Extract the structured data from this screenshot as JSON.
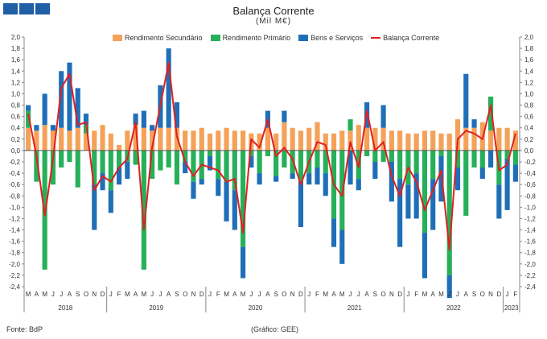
{
  "header": {
    "title": "Balança Corrente",
    "subtitle": "(Mil M€)"
  },
  "footer": {
    "source": "Fonte: BdP",
    "credit": "(Gráfico: GEE)"
  },
  "colors": {
    "rendimento_secundario": "#f4a259",
    "rendimento_primario": "#26b05a",
    "bens_servicos": "#1f6fb8",
    "balanca_corrente": "#e02020",
    "logo": "#1f5fa6"
  },
  "chart_data": {
    "type": "bar",
    "title": "Balança Corrente",
    "subtitle": "(Mil M€)",
    "ylim": [
      -2.4,
      2.0
    ],
    "yticks": [
      "2,0",
      "1,8",
      "1,6",
      "1,4",
      "1,2",
      "1,0",
      "0,8",
      "0,6",
      "0,4",
      "0,2",
      "0,0",
      "-0,2",
      "-0,4",
      "-0,6",
      "-0,8",
      "-1,0",
      "-1,2",
      "-1,4",
      "-1,6",
      "-1,8",
      "-2,0",
      "-2,2",
      "-2,4"
    ],
    "categories": [
      "M",
      "A",
      "M",
      "J",
      "J",
      "A",
      "S",
      "O",
      "N",
      "D",
      "J",
      "F",
      "M",
      "A",
      "M",
      "J",
      "J",
      "A",
      "S",
      "O",
      "N",
      "D",
      "J",
      "F",
      "M",
      "A",
      "M",
      "J",
      "J",
      "A",
      "S",
      "O",
      "N",
      "D",
      "J",
      "F",
      "M",
      "A",
      "M",
      "J",
      "J",
      "A",
      "S",
      "O",
      "N",
      "D",
      "J",
      "F",
      "M",
      "A",
      "M",
      "J",
      "J",
      "A",
      "S",
      "O",
      "N",
      "D",
      "J",
      "F"
    ],
    "years": [
      {
        "label": "2018",
        "start": 0,
        "end": 10
      },
      {
        "label": "2019",
        "start": 10,
        "end": 22
      },
      {
        "label": "2020",
        "start": 22,
        "end": 34
      },
      {
        "label": "2021",
        "start": 34,
        "end": 46
      },
      {
        "label": "2022",
        "start": 46,
        "end": 58
      },
      {
        "label": "2023",
        "start": 58,
        "end": 60
      }
    ],
    "series": [
      {
        "name": "Rendimento Secundário",
        "kind": "bar",
        "values": [
          0.4,
          0.35,
          0.45,
          0.35,
          0.4,
          0.35,
          0.4,
          0.3,
          0.35,
          0.45,
          0.3,
          0.1,
          0.35,
          0.45,
          0.4,
          0.35,
          0.4,
          0.4,
          0.4,
          0.35,
          0.35,
          0.4,
          0.3,
          0.35,
          0.4,
          0.35,
          0.35,
          0.3,
          0.3,
          0.4,
          0.3,
          0.5,
          0.4,
          0.35,
          0.4,
          0.5,
          0.3,
          0.3,
          0.35,
          0.35,
          0.45,
          0.4,
          0.4,
          0.4,
          0.35,
          0.35,
          0.3,
          0.3,
          0.35,
          0.35,
          0.3,
          0.3,
          0.55,
          0.4,
          0.4,
          0.5,
          0.35,
          0.4,
          0.4,
          0.35
        ]
      },
      {
        "name": "Rendimento Primário",
        "kind": "bar",
        "values": [
          0.3,
          -0.55,
          -2.1,
          -0.6,
          -0.3,
          -0.2,
          -0.65,
          0.15,
          -0.6,
          -0.4,
          -0.7,
          -0.3,
          -0.2,
          -0.25,
          -2.1,
          -0.5,
          -0.35,
          -0.3,
          -0.6,
          -0.2,
          -0.55,
          -0.5,
          -0.1,
          -0.5,
          -0.55,
          -0.7,
          -1.7,
          -0.1,
          -0.4,
          -0.1,
          -0.45,
          -0.3,
          -0.4,
          -0.55,
          -0.4,
          -0.3,
          -0.4,
          -1.2,
          -1.4,
          0.2,
          -0.5,
          -0.1,
          -0.2,
          -0.2,
          -0.2,
          -0.5,
          -0.6,
          -0.4,
          -1.45,
          -0.5,
          -0.1,
          -2.2,
          -0.3,
          -1.15,
          -0.3,
          -0.3,
          0.6,
          -0.6,
          -0.15,
          -0.25
        ]
      },
      {
        "name": "Bens e Serviços",
        "kind": "bar",
        "values": [
          0.1,
          0.1,
          0.55,
          0.1,
          1.0,
          1.2,
          0.7,
          0.2,
          -0.8,
          -0.3,
          -0.4,
          -0.3,
          -0.3,
          0.2,
          0.3,
          0.1,
          0.75,
          1.4,
          0.45,
          -0.2,
          -0.3,
          -0.1,
          -0.25,
          -0.3,
          -0.7,
          -0.7,
          -0.55,
          -0.2,
          -0.2,
          0.3,
          -0.1,
          0.2,
          -0.1,
          -0.8,
          -0.2,
          -0.3,
          -0.4,
          -0.5,
          -0.6,
          -0.6,
          -0.2,
          0.45,
          -0.3,
          0.4,
          -0.7,
          -1.2,
          -0.6,
          -0.8,
          -0.8,
          -0.9,
          -0.8,
          -0.4,
          -0.4,
          0.95,
          0.15,
          -0.2,
          -0.3,
          -0.6,
          -0.9,
          -0.3
        ]
      },
      {
        "name": "Balança Corrente",
        "kind": "line",
        "values": [
          0.65,
          -0.1,
          -1.15,
          -0.15,
          1.1,
          1.35,
          0.45,
          0.5,
          -0.7,
          -0.45,
          -0.55,
          -0.3,
          -0.15,
          0.5,
          -1.4,
          0.05,
          0.8,
          1.55,
          0.25,
          -0.2,
          -0.45,
          -0.25,
          -0.3,
          -0.35,
          -0.55,
          -0.5,
          -1.45,
          0.2,
          0.05,
          0.55,
          -0.1,
          0.05,
          -0.15,
          -0.6,
          -0.2,
          0.15,
          0.1,
          -0.6,
          -0.8,
          0.15,
          -0.3,
          0.7,
          0.0,
          0.15,
          -0.45,
          -0.8,
          -0.3,
          -0.55,
          -1.05,
          -0.7,
          -0.35,
          -1.75,
          0.2,
          0.35,
          0.3,
          0.2,
          0.8,
          -0.35,
          -0.25,
          0.3
        ]
      }
    ],
    "legend": "top",
    "grid": false
  }
}
